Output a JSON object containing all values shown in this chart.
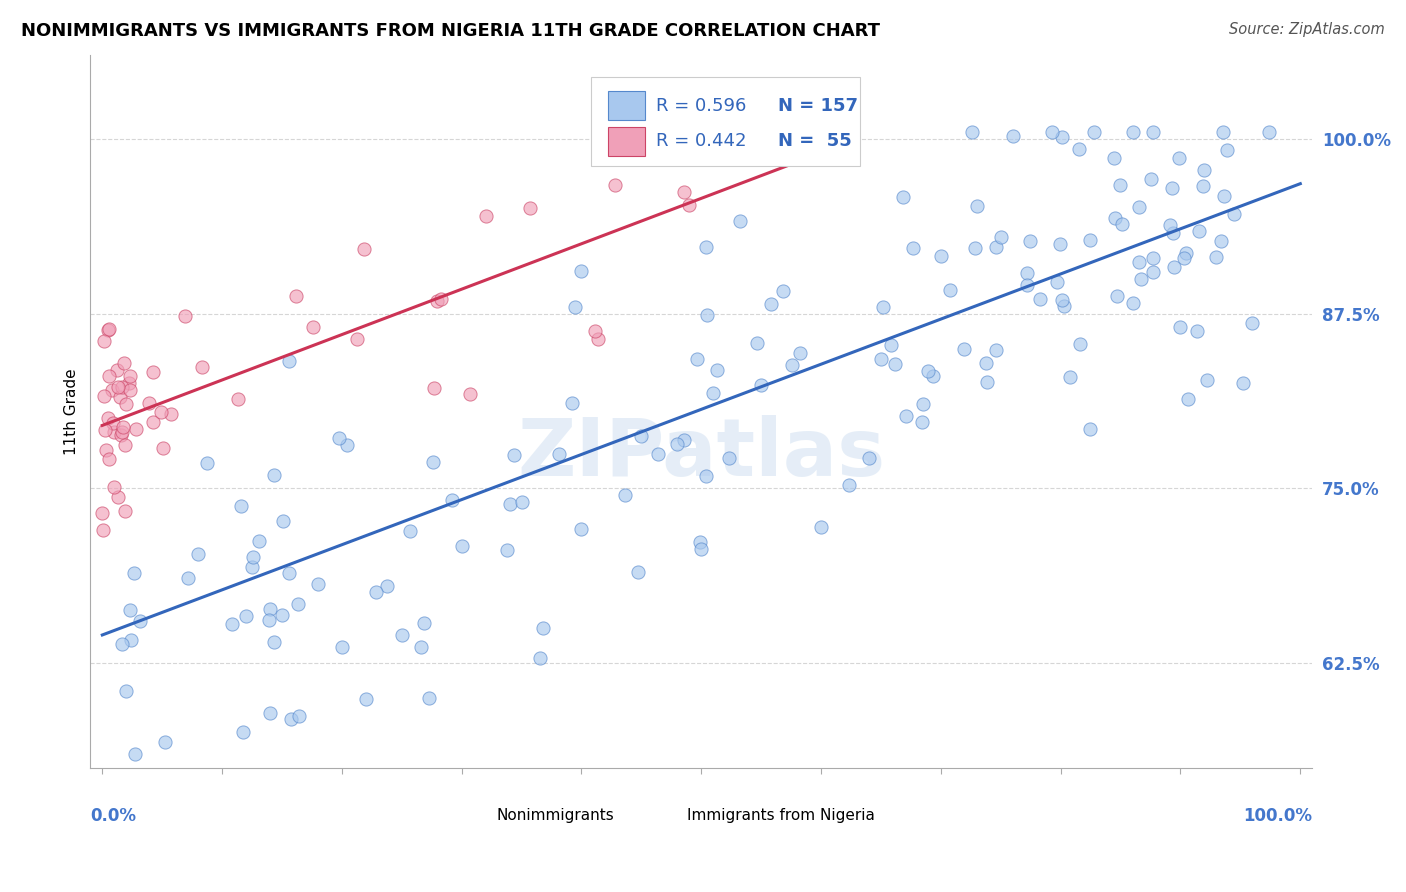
{
  "title": "NONIMMIGRANTS VS IMMIGRANTS FROM NIGERIA 11TH GRADE CORRELATION CHART",
  "source": "Source: ZipAtlas.com",
  "ylabel": "11th Grade",
  "ytick_vals": [
    0.625,
    0.75,
    0.875,
    1.0
  ],
  "ytick_labels": [
    "62.5%",
    "75.0%",
    "87.5%",
    "100.0%"
  ],
  "xlim": [
    -0.01,
    1.01
  ],
  "ylim": [
    0.55,
    1.06
  ],
  "blue_fill": "#a8c8ee",
  "blue_edge": "#5588cc",
  "pink_fill": "#f0a0b8",
  "pink_edge": "#cc4466",
  "blue_line_color": "#3366bb",
  "pink_line_color": "#cc3355",
  "legend_blue_R": "R = 0.596",
  "legend_blue_N": "N = 157",
  "legend_pink_R": "R = 0.442",
  "legend_pink_N": "N =  55",
  "axis_label_color": "#4477cc",
  "title_fontsize": 13,
  "blue_line": {
    "x0": 0.0,
    "x1": 1.0,
    "y0": 0.645,
    "y1": 0.968
  },
  "pink_line": {
    "x0": 0.0,
    "x1": 0.6,
    "y0": 0.795,
    "y1": 0.99
  }
}
